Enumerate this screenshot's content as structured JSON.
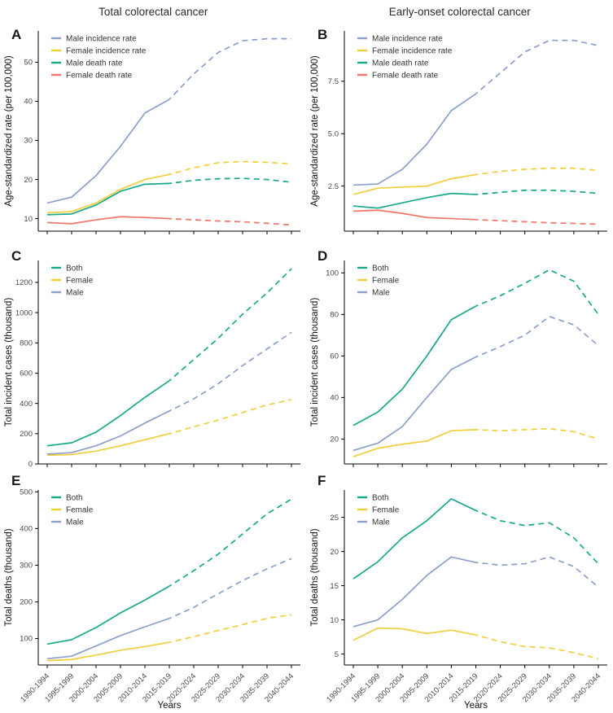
{
  "column_headers": [
    {
      "label": "Total colorectal cancer"
    },
    {
      "label": "Early-onset colorectal cancer"
    }
  ],
  "palette": {
    "male_blue": "#8DA0CB",
    "female_yellow": "#F1CF3C",
    "teal_green": "#18A98B",
    "salmon_red": "#F4756B",
    "axis_black": "#000000",
    "tick_gray": "#4a4a4a"
  },
  "chart_data": {
    "type": "line",
    "x": [
      "1990-1994",
      "1995-1999",
      "2000-2004",
      "2005-2009",
      "2010-2014",
      "2015-2019",
      "2020-2024",
      "2025-2029",
      "2030-2034",
      "2035-2039",
      "2040-2044"
    ],
    "xlabel": "Years",
    "solid_points": 6,
    "dashed_note_style": "projection periods 2020-2024 onward drawn dashed",
    "panels": [
      {
        "id": "A",
        "ylabel": "Age-standardized rate (per 100,000)",
        "ytick_values": [
          10,
          20,
          30,
          40,
          50
        ],
        "ytick_labels": [
          "10",
          "20",
          "30",
          "40",
          "50"
        ],
        "ylim": [
          6.8,
          58
        ],
        "series": [
          {
            "name": "Male incidence rate",
            "color": "#8DA0CB",
            "values": [
              14,
              15.5,
              21,
              28.5,
              37,
              40.5,
              47,
              52.5,
              55.5,
              56,
              56
            ]
          },
          {
            "name": "Female incidence rate",
            "color": "#F1CF3C",
            "values": [
              11.5,
              11.8,
              14,
              17.5,
              20,
              21.3,
              23,
              24.3,
              24.6,
              24.4,
              24
            ]
          },
          {
            "name": "Male death rate",
            "color": "#18A98B",
            "values": [
              11,
              11.2,
              13.5,
              17,
              18.8,
              19,
              19.8,
              20.2,
              20.3,
              20,
              19.3
            ]
          },
          {
            "name": "Female death rate",
            "color": "#F4756B",
            "values": [
              9,
              8.7,
              9.7,
              10.5,
              10.3,
              10,
              9.7,
              9.4,
              9.2,
              8.8,
              8.4
            ]
          }
        ]
      },
      {
        "id": "B",
        "ylabel": "Age-standardized rate (per 100,000)",
        "ytick_values": [
          2.5,
          5.0,
          7.5
        ],
        "ytick_labels": [
          "2.5",
          "5.0",
          "7.5"
        ],
        "ylim": [
          0.35,
          9.9
        ],
        "series": [
          {
            "name": "Male incidence rate",
            "color": "#8DA0CB",
            "values": [
              2.55,
              2.6,
              3.3,
              4.5,
              6.1,
              6.9,
              7.9,
              8.9,
              9.45,
              9.45,
              9.2
            ]
          },
          {
            "name": "Female incidence rate",
            "color": "#F1CF3C",
            "values": [
              2.1,
              2.4,
              2.45,
              2.5,
              2.85,
              3.05,
              3.2,
              3.3,
              3.35,
              3.35,
              3.25
            ]
          },
          {
            "name": "Male death rate",
            "color": "#18A98B",
            "values": [
              1.55,
              1.45,
              1.7,
              1.95,
              2.15,
              2.1,
              2.2,
              2.3,
              2.3,
              2.25,
              2.15
            ]
          },
          {
            "name": "Female death rate",
            "color": "#F4756B",
            "values": [
              1.3,
              1.35,
              1.2,
              1.0,
              0.95,
              0.9,
              0.85,
              0.8,
              0.75,
              0.72,
              0.68
            ]
          }
        ]
      },
      {
        "id": "C",
        "ylabel": "Total incident cases (thousand)",
        "ytick_values": [
          0,
          200,
          400,
          600,
          800,
          1000,
          1200
        ],
        "ytick_labels": [
          "0",
          "200",
          "400",
          "600",
          "800",
          "1000",
          "1200"
        ],
        "ylim": [
          0,
          1345
        ],
        "series": [
          {
            "name": "Both",
            "color": "#18A98B",
            "values": [
              120,
              140,
              210,
              320,
              440,
              550,
              690,
              830,
              990,
              1130,
              1290
            ]
          },
          {
            "name": "Female",
            "color": "#F1CF3C",
            "values": [
              58,
              62,
              85,
              120,
              160,
              200,
              245,
              290,
              340,
              390,
              425
            ]
          },
          {
            "name": "Male",
            "color": "#8DA0CB",
            "values": [
              65,
              75,
              120,
              185,
              270,
              350,
              430,
              530,
              650,
              760,
              870
            ]
          }
        ]
      },
      {
        "id": "D",
        "ylabel": "Total incident cases (thousand)",
        "ytick_values": [
          20,
          40,
          60,
          80,
          100
        ],
        "ytick_labels": [
          "20",
          "40",
          "60",
          "80",
          "100"
        ],
        "ylim": [
          8,
          106
        ],
        "series": [
          {
            "name": "Both",
            "color": "#18A98B",
            "values": [
              26.5,
              33,
              44,
              60,
              77.5,
              84,
              89,
              95,
              101.5,
              96,
              80
            ]
          },
          {
            "name": "Female",
            "color": "#F1CF3C",
            "values": [
              11.5,
              15.5,
              17.5,
              19,
              24,
              24.5,
              24,
              24.5,
              25,
              23.5,
              20
            ]
          },
          {
            "name": "Male",
            "color": "#8DA0CB",
            "values": [
              14.5,
              18,
              26,
              40,
              53.5,
              59.5,
              64.5,
              70,
              79,
              75,
              65
            ]
          }
        ]
      },
      {
        "id": "E",
        "ylabel": "Total deaths (thousand)",
        "ytick_values": [
          100,
          200,
          300,
          400,
          500
        ],
        "ytick_labels": [
          "100",
          "200",
          "300",
          "400",
          "500"
        ],
        "ylim": [
          28,
          505
        ],
        "series": [
          {
            "name": "Both",
            "color": "#18A98B",
            "values": [
              85,
              97,
              130,
              170,
              205,
              243,
              285,
              330,
              385,
              440,
              480
            ]
          },
          {
            "name": "Female",
            "color": "#F1CF3C",
            "values": [
              40,
              43,
              55,
              68,
              78,
              90,
              105,
              122,
              138,
              155,
              165
            ]
          },
          {
            "name": "Male",
            "color": "#8DA0CB",
            "values": [
              45,
              52,
              80,
              108,
              132,
              155,
              185,
              222,
              258,
              290,
              318
            ]
          }
        ]
      },
      {
        "id": "F",
        "ylabel": "Total deaths (thousand)",
        "ytick_values": [
          5,
          10,
          15,
          20,
          25
        ],
        "ytick_labels": [
          "5",
          "10",
          "15",
          "20",
          "25"
        ],
        "ylim": [
          3.4,
          29
        ],
        "series": [
          {
            "name": "Both",
            "color": "#18A98B",
            "values": [
              16,
              18.5,
              22,
              24.5,
              27.7,
              26,
              24.5,
              23.8,
              24.2,
              22,
              18.2
            ]
          },
          {
            "name": "Female",
            "color": "#F1CF3C",
            "values": [
              7,
              8.8,
              8.7,
              8,
              8.5,
              7.8,
              6.8,
              6.1,
              5.9,
              5.2,
              4.3
            ]
          },
          {
            "name": "Male",
            "color": "#8DA0CB",
            "values": [
              9,
              10,
              13,
              16.5,
              19.2,
              18.4,
              18,
              18.2,
              19.2,
              17.8,
              14.8
            ]
          }
        ]
      }
    ]
  }
}
